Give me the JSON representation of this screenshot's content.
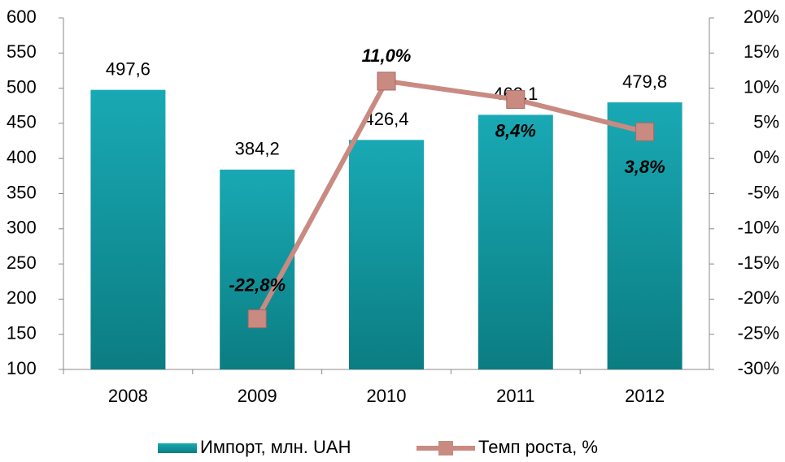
{
  "chart_data": {
    "type": "bar_line",
    "categories": [
      "2008",
      "2009",
      "2010",
      "2011",
      "2012"
    ],
    "series": [
      {
        "name": "Импорт, млн. UAH",
        "type": "bar",
        "color": "#139aa4",
        "values": [
          497.6,
          384.2,
          426.4,
          462.1,
          479.8
        ],
        "value_labels": [
          "497,6",
          "384,2",
          "426,4",
          "462,1",
          "479,8"
        ]
      },
      {
        "name": "Темп роста, %",
        "type": "line",
        "axis": "y2",
        "color": "#c98a82",
        "values": [
          null,
          -22.8,
          11.0,
          8.4,
          3.8
        ],
        "value_labels": [
          null,
          "-22,8%",
          "11,0%",
          "8,4%",
          "3,8%"
        ]
      }
    ],
    "ylim": [
      100,
      600
    ],
    "yticks": [
      100,
      150,
      200,
      250,
      300,
      350,
      400,
      450,
      500,
      550,
      600
    ],
    "y2lim": [
      -30,
      20
    ],
    "y2ticks": [
      {
        "value": -30,
        "label": "-30%"
      },
      {
        "value": -25,
        "label": "-25%"
      },
      {
        "value": -20,
        "label": "-20%"
      },
      {
        "value": -15,
        "label": "-15%"
      },
      {
        "value": -10,
        "label": "-10%"
      },
      {
        "value": -5,
        "label": "-5%"
      },
      {
        "value": 0,
        "label": "0%"
      },
      {
        "value": 5,
        "label": "5%"
      },
      {
        "value": 10,
        "label": "10%"
      },
      {
        "value": 15,
        "label": "15%"
      },
      {
        "value": 20,
        "label": "20%"
      }
    ],
    "grid": false,
    "legend": "bottom"
  }
}
